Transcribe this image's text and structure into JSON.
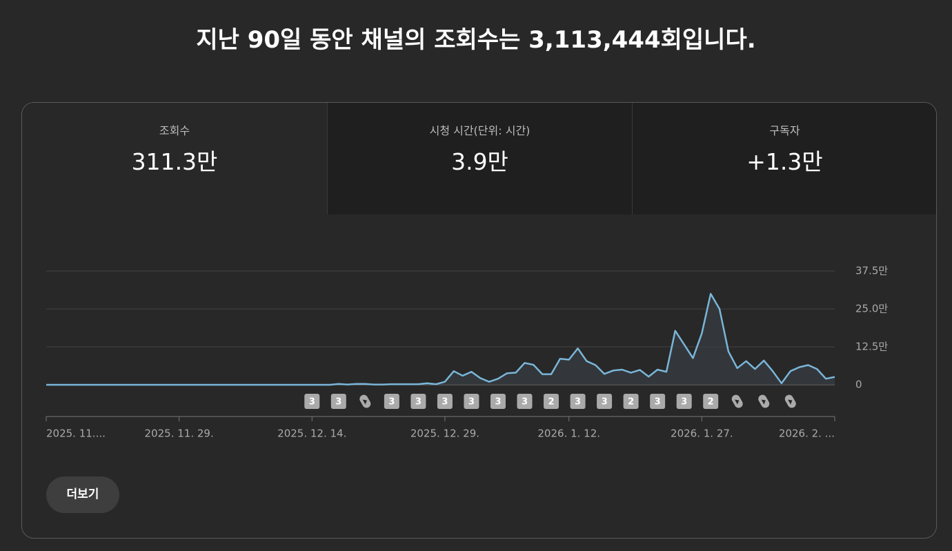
{
  "header": {
    "title": "지난 90일 동안 채널의 조회수는 3,113,444회입니다."
  },
  "tabs": [
    {
      "label": "조회수",
      "value": "311.3만"
    },
    {
      "label": "시청 시간(단위: 시간)",
      "value": "3.9만"
    },
    {
      "label": "구독자",
      "value": "+1.3만"
    }
  ],
  "chart_data": {
    "type": "line",
    "color": "#7ab6d9",
    "grid": true,
    "values": [
      0,
      0,
      0,
      0,
      0,
      0,
      0,
      0,
      0,
      0,
      0,
      0,
      0,
      0,
      0,
      0,
      0,
      0,
      0,
      0,
      0,
      0,
      0,
      0,
      0,
      0,
      0,
      0,
      0,
      0,
      0,
      0,
      0,
      3000,
      1000,
      3000,
      3000,
      1000,
      1000,
      2000,
      2000,
      2000,
      2000,
      5000,
      2000,
      10000,
      45000,
      30000,
      43000,
      22000,
      10000,
      20000,
      38000,
      40000,
      72000,
      66000,
      35000,
      35000,
      86000,
      83000,
      120000,
      78000,
      65000,
      36000,
      47000,
      50000,
      40000,
      49000,
      27000,
      50000,
      43000,
      178000,
      133000,
      88000,
      170000,
      300000,
      250000,
      110000,
      55000,
      78000,
      52000,
      80000,
      45000,
      5000,
      45000,
      58000,
      65000,
      52000,
      20000,
      26000
    ],
    "xlim": [
      0,
      89
    ],
    "xticks": [
      {
        "value": 0,
        "label": "2025. 11...."
      },
      {
        "value": 15,
        "label": "2025. 11. 29."
      },
      {
        "value": 30,
        "label": "2025. 12. 14."
      },
      {
        "value": 45,
        "label": "2025. 12. 29."
      },
      {
        "value": 59,
        "label": "2026. 1. 12."
      },
      {
        "value": 74,
        "label": "2026. 1. 27."
      },
      {
        "value": 89,
        "label": "2026. 2. ..."
      }
    ],
    "ylim": [
      0,
      375000
    ],
    "yticks": [
      0,
      {
        "value": 125000,
        "label": "12.5만"
      },
      {
        "value": 250000,
        "label": "25.0만"
      },
      {
        "value": 375000,
        "label": "37.5만"
      }
    ],
    "uploads": [
      {
        "day": 30,
        "label": "3"
      },
      {
        "day": 33,
        "label": "3"
      },
      {
        "day": 39,
        "label": "3"
      },
      {
        "day": 42,
        "label": "3"
      },
      {
        "day": 45,
        "label": "3"
      },
      {
        "day": 48,
        "label": "3"
      },
      {
        "day": 51,
        "label": "3"
      },
      {
        "day": 54,
        "label": "3"
      },
      {
        "day": 57,
        "label": "2"
      },
      {
        "day": 60,
        "label": "3"
      },
      {
        "day": 63,
        "label": "3"
      },
      {
        "day": 66,
        "label": "2"
      },
      {
        "day": 69,
        "label": "3"
      },
      {
        "day": 72,
        "label": "3"
      },
      {
        "day": 75,
        "label": "2"
      }
    ],
    "shorts_uploads": [
      36,
      78,
      81,
      84
    ]
  },
  "button": {
    "label": "더보기"
  }
}
